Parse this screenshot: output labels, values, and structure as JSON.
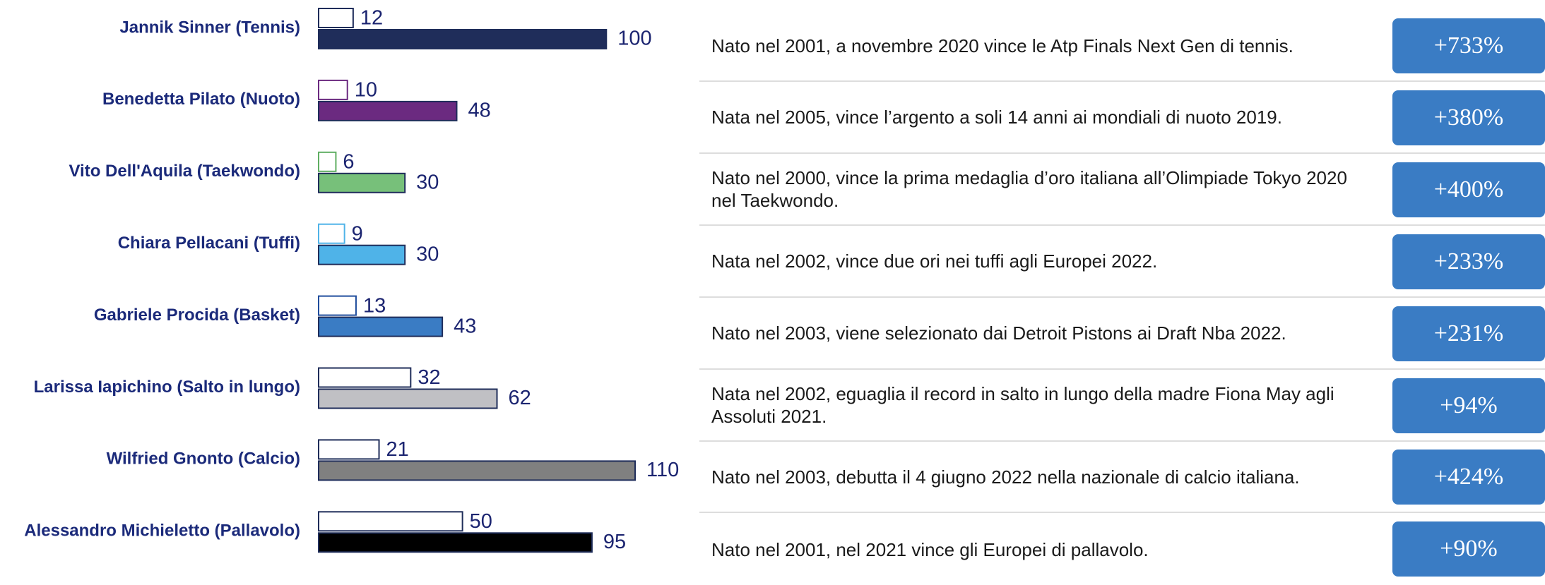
{
  "chart_data": {
    "type": "bar",
    "categories": [
      "Jannik Sinner (Tennis)",
      "Benedetta Pilato (Nuoto)",
      "Vito Dell'Aquila (Taekwondo)",
      "Chiara Pellacani (Tuffi)",
      "Gabriele Procida (Basket)",
      "Larissa Iapichino (Salto in lungo)",
      "Wilfried Gnonto (Calcio)",
      "Alessandro Michieletto (Pallavolo)"
    ],
    "series": [
      {
        "values": [
          12,
          10,
          6,
          9,
          13,
          32,
          21,
          50
        ],
        "color": "none",
        "stroke_colors": [
          "#1f2d5a",
          "#6b2a80",
          "#5fae62",
          "#4fb3e8",
          "#1f4c9c",
          "#1f2d5a",
          "#1f2d5a",
          "#1f2d5a"
        ]
      },
      {
        "values": [
          100,
          48,
          30,
          30,
          43,
          62,
          110,
          95
        ],
        "colors": [
          "#1f2d5a",
          "#6b2a80",
          "#77c07a",
          "#4fb3e8",
          "#3a7cc4",
          "#c0c0c4",
          "#808080",
          "#000000"
        ],
        "stroke": "#1f2d5a"
      }
    ],
    "descriptions": [
      "Nato nel 2001, a novembre 2020 vince le Atp Finals Next Gen di tennis.",
      "Nata nel 2005, vince l’argento a soli 14 anni ai mondiali di nuoto 2019.",
      "Nato nel 2000, vince la prima medaglia d’oro italiana all’Olimpiade Tokyo 2020 nel Taekwondo.",
      "Nata nel 2002, vince due ori nei tuffi agli Europei 2022.",
      "Nato nel 2003, viene selezionato dai Detroit Pistons ai Draft Nba 2022.",
      "Nata nel 2002, eguaglia il record in salto in lungo della madre Fiona May agli Assoluti 2021.",
      "Nato nel 2003, debutta il 4 giugno 2022 nella nazionale di calcio italiana.",
      "Nato nel 2001, nel 2021 vince gli Europei di pallavolo."
    ],
    "change": {
      "values": [
        733,
        380,
        400,
        233,
        231,
        94,
        424,
        90
      ],
      "value_labels": [
        "+733%",
        "+380%",
        "+400%",
        "+233%",
        "+231%",
        "+94%",
        "+424%",
        "+90%"
      ],
      "color": "#3a7cc4"
    }
  }
}
